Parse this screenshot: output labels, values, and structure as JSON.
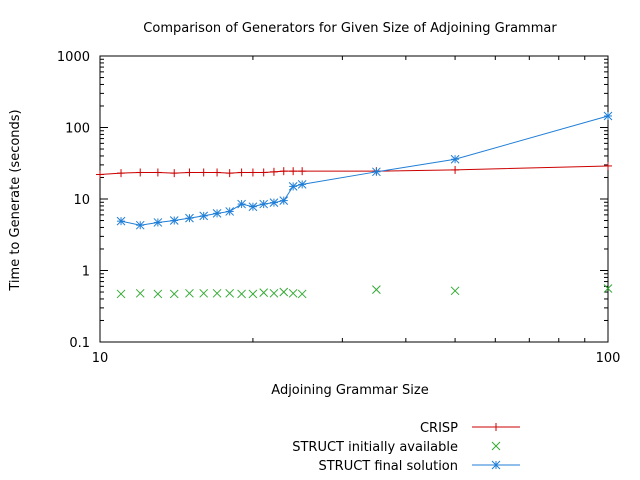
{
  "chart_data": {
    "type": "line",
    "title": "Comparison of Generators for Given Size of Adjoining Grammar",
    "xlabel": "Adjoining Grammar Size",
    "ylabel": "Time to Generate (seconds)",
    "x_scale": "log",
    "y_scale": "log",
    "xlim": [
      10,
      100
    ],
    "ylim": [
      0.1,
      1000
    ],
    "x_ticks": [
      10,
      100
    ],
    "x_tick_labels": [
      "10",
      "100"
    ],
    "y_ticks": [
      0.1,
      1,
      10,
      100,
      1000
    ],
    "y_tick_labels": [
      "0.1",
      "1",
      "10",
      "100",
      "1000"
    ],
    "grid": false,
    "legend_position": "bottom-center",
    "series": [
      {
        "name": "CRISP",
        "style": "linespoints",
        "marker": "plus",
        "color": "#cc0000",
        "x": [
          10,
          11,
          12,
          13,
          14,
          15,
          16,
          17,
          18,
          19,
          20,
          21,
          22,
          23,
          24,
          25,
          35,
          50,
          100
        ],
        "y": [
          22,
          23,
          23.5,
          23.5,
          23,
          23.5,
          23.5,
          23.5,
          23,
          23.5,
          23.5,
          23.5,
          24,
          24.5,
          24.5,
          24.5,
          24.5,
          25.5,
          29
        ]
      },
      {
        "name": "STRUCT initially available",
        "style": "points",
        "marker": "cross",
        "color": "#33aa33",
        "x": [
          11,
          12,
          13,
          14,
          15,
          16,
          17,
          18,
          19,
          20,
          21,
          22,
          23,
          24,
          25,
          35,
          50,
          100
        ],
        "y": [
          0.47,
          0.48,
          0.47,
          0.47,
          0.48,
          0.48,
          0.48,
          0.48,
          0.47,
          0.47,
          0.49,
          0.48,
          0.5,
          0.48,
          0.47,
          0.54,
          0.52,
          0.56
        ]
      },
      {
        "name": "STRUCT final solution",
        "style": "linespoints",
        "marker": "star",
        "color": "#1f7ed6",
        "x": [
          11,
          12,
          13,
          14,
          15,
          16,
          17,
          18,
          19,
          20,
          21,
          22,
          23,
          24,
          25,
          35,
          50,
          100
        ],
        "y": [
          4.9,
          4.3,
          4.7,
          5.0,
          5.4,
          5.8,
          6.3,
          6.7,
          8.5,
          7.8,
          8.5,
          8.9,
          9.5,
          15,
          16,
          24,
          36,
          145
        ]
      }
    ]
  }
}
